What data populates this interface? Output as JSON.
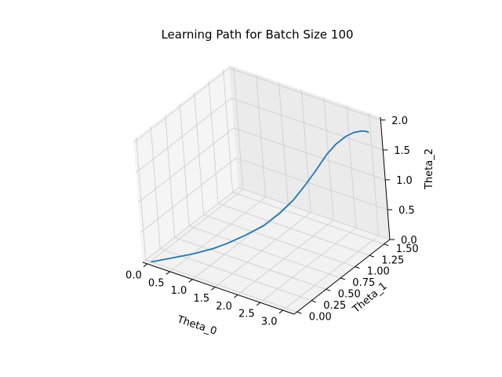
{
  "chart_data": {
    "type": "line",
    "projection": "3d",
    "title": "Learning Path for Batch Size 100",
    "xlabel": "Theta_0",
    "ylabel": "Theta_1",
    "zlabel": "Theta_2",
    "x_ticks": [
      "0.0",
      "0.5",
      "1.0",
      "1.5",
      "2.0",
      "2.5",
      "3.0"
    ],
    "y_ticks": [
      "0.00",
      "0.25",
      "0.50",
      "0.75",
      "1.00",
      "1.25",
      "1.50"
    ],
    "z_ticks": [
      "0.0",
      "0.5",
      "1.0",
      "1.5",
      "2.0"
    ],
    "xlim": [
      -0.1,
      3.25
    ],
    "ylim": [
      -0.05,
      1.6
    ],
    "zlim": [
      0.0,
      2.05
    ],
    "grid": true,
    "line_color": "#1f77b4",
    "series": [
      {
        "x": [
          0.02,
          0.35,
          0.75,
          1.05,
          1.3,
          1.55,
          1.85,
          2.1,
          2.3,
          2.45,
          2.6,
          2.75,
          2.85,
          2.95,
          3.02,
          3.08,
          3.12,
          3.14
        ],
        "y": [
          0.0,
          0.09,
          0.2,
          0.29,
          0.37,
          0.46,
          0.57,
          0.67,
          0.76,
          0.84,
          0.93,
          1.04,
          1.13,
          1.23,
          1.31,
          1.39,
          1.44,
          1.47
        ],
        "z": [
          0.0,
          0.08,
          0.18,
          0.27,
          0.37,
          0.49,
          0.65,
          0.85,
          1.05,
          1.25,
          1.47,
          1.72,
          1.85,
          1.93,
          1.95,
          1.93,
          1.9,
          1.86
        ]
      }
    ]
  }
}
